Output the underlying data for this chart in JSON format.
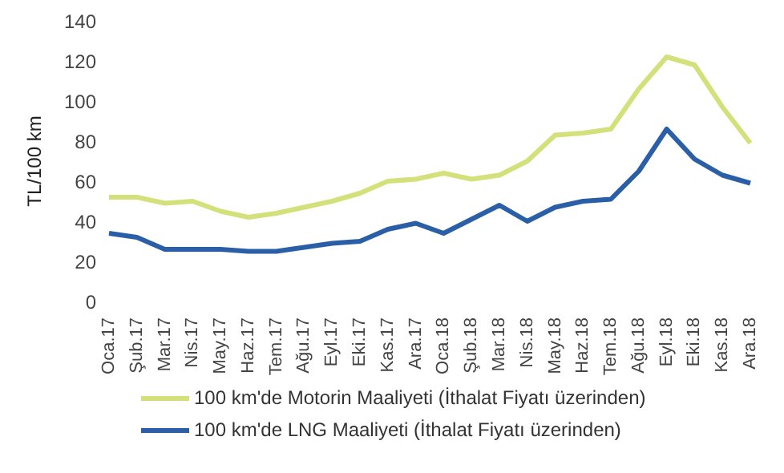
{
  "chart_data": {
    "type": "line",
    "ylabel": "TL/100 km",
    "categories": [
      "Oca.17",
      "Şub.17",
      "Mar.17",
      "Nis.17",
      "May.17",
      "Haz.17",
      "Tem.17",
      "Ağu.17",
      "Eyl.17",
      "Eki.17",
      "Kas.17",
      "Ara.17",
      "Oca.18",
      "Şub.18",
      "Mar.18",
      "Nis.18",
      "May.18",
      "Haz.18",
      "Tem.18",
      "Ağu.18",
      "Eyl.18",
      "Eki.18",
      "Kas.18",
      "Ara.18"
    ],
    "series": [
      {
        "name": "100 km'de Motorin Maaliyeti (İthalat Fiyatı üzerinden)",
        "color": "#d4e07a",
        "values": [
          52,
          52,
          49,
          50,
          45,
          42,
          44,
          47,
          50,
          54,
          60,
          61,
          64,
          61,
          63,
          70,
          83,
          84,
          86,
          106,
          122,
          118,
          97,
          79
        ]
      },
      {
        "name": "100 km'de LNG Maaliyeti (İthalat Fiyatı üzerinden)",
        "color": "#2a5fa8",
        "values": [
          34,
          32,
          26,
          26,
          26,
          25,
          25,
          27,
          29,
          30,
          36,
          39,
          34,
          41,
          48,
          40,
          47,
          50,
          51,
          65,
          86,
          71,
          63,
          59
        ]
      }
    ],
    "ylim": [
      0,
      140
    ],
    "yticks": [
      0,
      20,
      40,
      60,
      80,
      100,
      120,
      140
    ],
    "grid": false,
    "legend": "bottom",
    "marker": "none",
    "line_style": "solid"
  }
}
